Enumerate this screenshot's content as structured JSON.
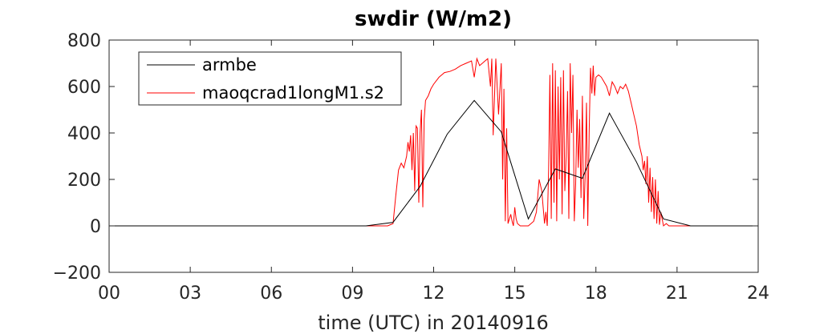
{
  "chart_data": {
    "type": "line",
    "title": "swdir  (W/m2)",
    "xlabel": "time (UTC) in 20140916",
    "ylabel": "",
    "xlim": [
      0,
      24
    ],
    "ylim": [
      -200,
      800
    ],
    "x_ticks": [
      "00",
      "03",
      "06",
      "09",
      "12",
      "15",
      "18",
      "21",
      "24"
    ],
    "y_ticks": [
      "-200",
      "0",
      "200",
      "400",
      "600",
      "800"
    ],
    "grid": false,
    "legend_position": "top-left",
    "series": [
      {
        "name": "armbe",
        "color": "#000000",
        "x": [
          0,
          1,
          2,
          3,
          4,
          5,
          6,
          7,
          8,
          9,
          9.5,
          10.5,
          11.5,
          12.5,
          13.5,
          14.5,
          15.5,
          16.5,
          17.5,
          18.5,
          19.5,
          20.5,
          21.5,
          22,
          23,
          24
        ],
        "y": [
          0,
          0,
          0,
          0,
          0,
          0,
          0,
          0,
          0,
          0,
          0,
          15,
          170,
          395,
          540,
          405,
          30,
          245,
          205,
          485,
          275,
          30,
          0,
          0,
          0,
          0
        ]
      },
      {
        "name": "maoqcrad1longM1.s2",
        "color": "#ff0000",
        "x": [
          0,
          10.3,
          10.5,
          10.6,
          10.7,
          10.8,
          10.9,
          11.0,
          11.05,
          11.1,
          11.15,
          11.2,
          11.25,
          11.3,
          11.35,
          11.4,
          11.45,
          11.5,
          11.55,
          11.6,
          11.65,
          11.7,
          11.8,
          11.9,
          12.0,
          12.2,
          12.4,
          12.6,
          12.8,
          13.0,
          13.2,
          13.4,
          13.5,
          13.6,
          13.7,
          13.8,
          13.9,
          14.0,
          14.1,
          14.15,
          14.2,
          14.3,
          14.4,
          14.5,
          14.55,
          14.6,
          14.65,
          14.7,
          14.75,
          14.8,
          14.85,
          14.9,
          14.95,
          15.0,
          15.05,
          15.1,
          15.2,
          15.3,
          15.4,
          15.5,
          15.6,
          15.7,
          15.8,
          15.9,
          16.0,
          16.1,
          16.15,
          16.2,
          16.25,
          16.3,
          16.35,
          16.4,
          16.45,
          16.5,
          16.55,
          16.6,
          16.65,
          16.7,
          16.75,
          16.8,
          16.85,
          16.9,
          16.95,
          17.0,
          17.05,
          17.1,
          17.15,
          17.2,
          17.25,
          17.3,
          17.35,
          17.4,
          17.45,
          17.5,
          17.55,
          17.6,
          17.65,
          17.7,
          17.75,
          17.8,
          17.85,
          17.9,
          17.95,
          18.0,
          18.1,
          18.2,
          18.3,
          18.4,
          18.5,
          18.6,
          18.7,
          18.8,
          18.9,
          19.0,
          19.1,
          19.2,
          19.3,
          19.4,
          19.5,
          19.6,
          19.7,
          19.75,
          19.8,
          19.85,
          19.9,
          19.95,
          20.0,
          20.05,
          20.1,
          20.15,
          20.2,
          20.25,
          20.3,
          20.35,
          20.4,
          20.5,
          20.6,
          20.7,
          20.8,
          21.0,
          22.0,
          24.0
        ],
        "y": [
          0,
          0,
          10,
          130,
          240,
          270,
          250,
          300,
          360,
          320,
          390,
          240,
          400,
          150,
          430,
          420,
          100,
          400,
          500,
          80,
          460,
          540,
          560,
          590,
          610,
          640,
          660,
          665,
          675,
          690,
          700,
          710,
          640,
          720,
          690,
          700,
          710,
          720,
          600,
          720,
          390,
          720,
          480,
          700,
          200,
          590,
          20,
          420,
          10,
          30,
          50,
          20,
          0,
          80,
          30,
          10,
          0,
          0,
          0,
          0,
          10,
          20,
          60,
          200,
          150,
          10,
          60,
          0,
          240,
          650,
          30,
          700,
          100,
          670,
          20,
          600,
          200,
          640,
          50,
          670,
          150,
          300,
          580,
          30,
          700,
          400,
          650,
          20,
          180,
          500,
          250,
          460,
          120,
          560,
          30,
          210,
          530,
          0,
          400,
          680,
          570,
          690,
          560,
          640,
          650,
          640,
          620,
          600,
          560,
          620,
          600,
          570,
          600,
          590,
          610,
          580,
          530,
          480,
          430,
          350,
          300,
          240,
          280,
          180,
          300,
          100,
          250,
          60,
          210,
          30,
          200,
          10,
          150,
          5,
          60,
          0,
          10,
          0,
          0,
          0,
          0,
          0
        ]
      }
    ]
  }
}
